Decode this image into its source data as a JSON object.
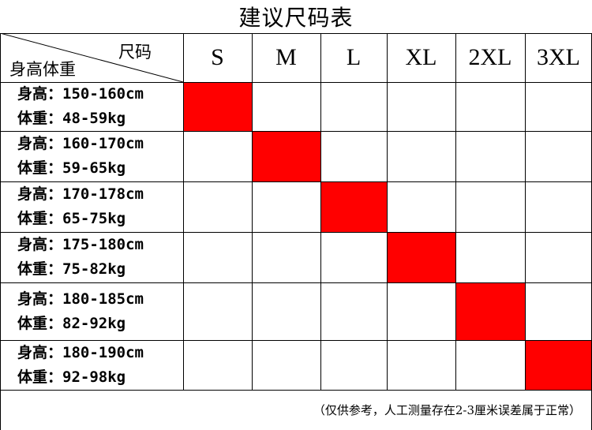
{
  "title": "建议尺码表",
  "header": {
    "corner_size": "尺码",
    "corner_body": "身高体重",
    "sizes": [
      "S",
      "M",
      "L",
      "XL",
      "2XL",
      "3XL"
    ]
  },
  "rows": [
    {
      "height": "身高：150-160cm",
      "weight": "体重：48-59kg",
      "size": "S"
    },
    {
      "height": "身高：160-170cm",
      "weight": "体重：59-65kg",
      "size": "M"
    },
    {
      "height": "身高：170-178cm",
      "weight": "体重：65-75kg",
      "size": "L"
    },
    {
      "height": "身高：175-180cm",
      "weight": "体重：75-82kg",
      "size": "XL"
    },
    {
      "height": "身高：180-185cm",
      "weight": "体重：82-92kg",
      "size": "2XL"
    },
    {
      "height": "身高：180-190cm",
      "weight": "体重：92-98kg",
      "size": "3XL"
    }
  ],
  "note": "（仅供参考，人工测量存在2-3厘米误差属于正常）",
  "colors": {
    "mark": "#ff0000",
    "line": "#000000"
  }
}
